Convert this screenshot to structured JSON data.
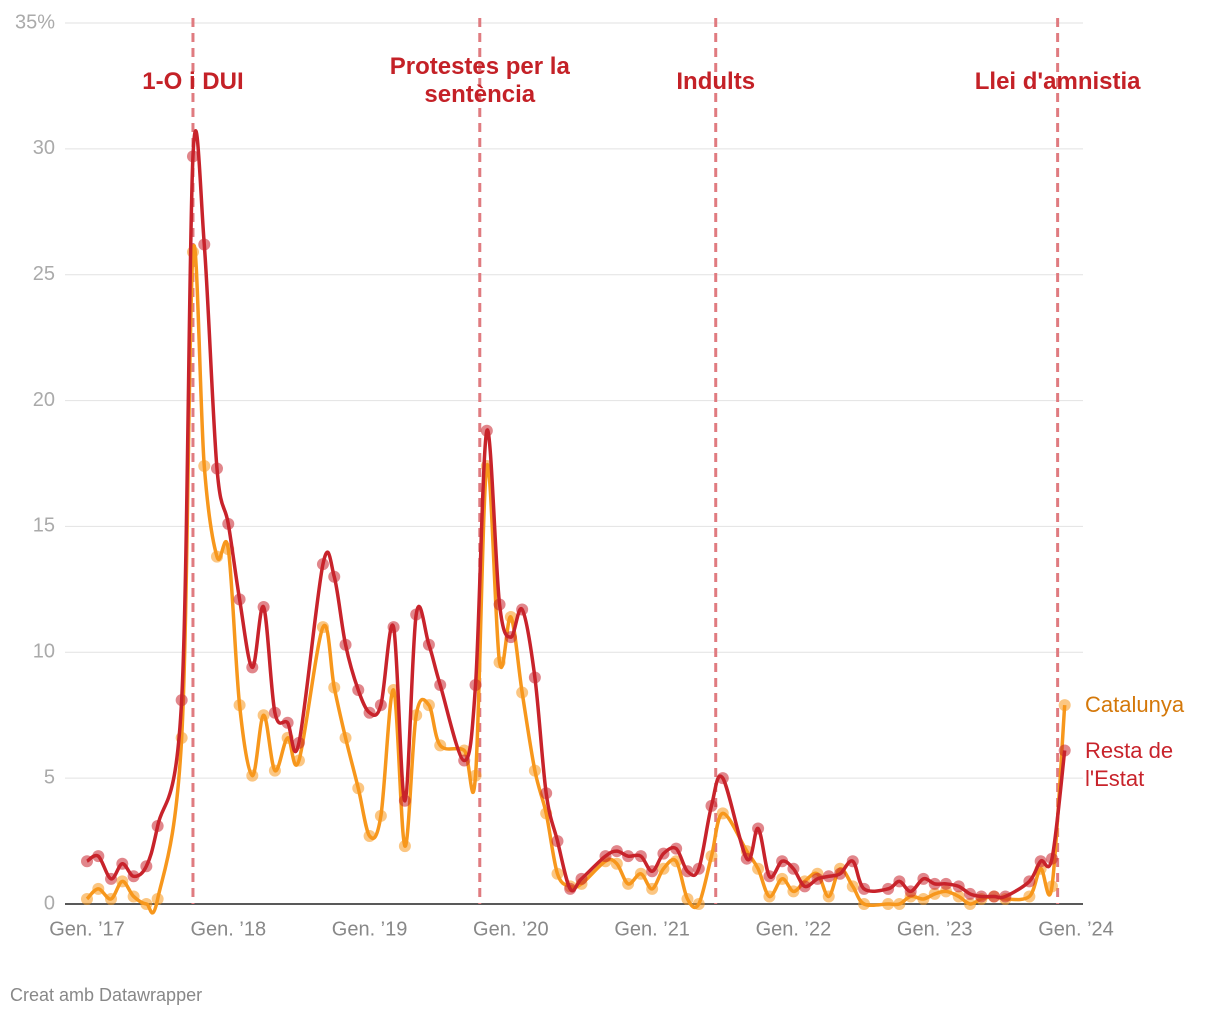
{
  "chart_data": {
    "type": "line",
    "x": [
      2017,
      2017.08,
      2017.17,
      2017.25,
      2017.33,
      2017.42,
      2017.5,
      2017.67,
      2017.75,
      2017.83,
      2017.92,
      2018,
      2018.08,
      2018.17,
      2018.25,
      2018.33,
      2018.42,
      2018.5,
      2018.67,
      2018.75,
      2018.83,
      2018.92,
      2019,
      2019.08,
      2019.17,
      2019.25,
      2019.33,
      2019.42,
      2019.5,
      2019.67,
      2019.75,
      2019.83,
      2019.92,
      2020,
      2020.08,
      2020.17,
      2020.25,
      2020.33,
      2020.42,
      2020.5,
      2020.67,
      2020.75,
      2020.83,
      2020.92,
      2021,
      2021.08,
      2021.17,
      2021.25,
      2021.33,
      2021.42,
      2021.5,
      2021.67,
      2021.75,
      2021.83,
      2021.92,
      2022,
      2022.08,
      2022.17,
      2022.25,
      2022.33,
      2022.42,
      2022.5,
      2022.67,
      2022.75,
      2022.83,
      2022.92,
      2023,
      2023.08,
      2023.17,
      2023.25,
      2023.33,
      2023.42,
      2023.5,
      2023.67,
      2023.75,
      2023.83,
      2023.92
    ],
    "series": [
      {
        "name": "Catalunya",
        "color": "#f7971c",
        "values": [
          0.2,
          0.6,
          0.2,
          0.9,
          0.3,
          0.0,
          0.2,
          6.6,
          25.9,
          17.4,
          13.8,
          14.1,
          7.9,
          5.1,
          7.5,
          5.3,
          6.6,
          5.7,
          11.0,
          8.6,
          6.6,
          4.6,
          2.7,
          3.5,
          8.5,
          2.3,
          7.5,
          7.9,
          6.3,
          6.1,
          5.1,
          17.4,
          9.6,
          11.4,
          8.4,
          5.3,
          3.6,
          1.2,
          0.7,
          0.8,
          1.7,
          1.6,
          0.8,
          1.2,
          0.6,
          1.4,
          1.7,
          0.2,
          0.0,
          1.9,
          3.6,
          2.1,
          1.4,
          0.3,
          1.0,
          0.5,
          0.9,
          1.2,
          0.3,
          1.4,
          0.7,
          0.0,
          0.0,
          0.0,
          0.3,
          0.2,
          0.4,
          0.5,
          0.3,
          0.0,
          0.2,
          0.3,
          0.2,
          0.3,
          1.4,
          0.7,
          7.9
        ]
      },
      {
        "name": "Resta de l'Estat",
        "color": "#c8232b",
        "values": [
          1.7,
          1.9,
          1.0,
          1.6,
          1.1,
          1.5,
          3.1,
          8.1,
          29.7,
          26.2,
          17.3,
          15.1,
          12.1,
          9.4,
          11.8,
          7.6,
          7.2,
          6.4,
          13.5,
          13.0,
          10.3,
          8.5,
          7.6,
          7.9,
          11.0,
          4.1,
          11.5,
          10.3,
          8.7,
          5.7,
          8.7,
          18.8,
          11.9,
          10.6,
          11.7,
          9.0,
          4.4,
          2.5,
          0.6,
          1.0,
          1.9,
          2.1,
          1.9,
          1.9,
          1.3,
          2.0,
          2.2,
          1.3,
          1.4,
          3.9,
          5.0,
          1.8,
          3.0,
          1.1,
          1.7,
          1.4,
          0.7,
          1.0,
          1.1,
          1.2,
          1.7,
          0.6,
          0.6,
          0.9,
          0.5,
          1.0,
          0.8,
          0.8,
          0.7,
          0.4,
          0.3,
          0.3,
          0.3,
          0.9,
          1.7,
          1.8,
          6.1
        ]
      }
    ],
    "xlim": [
      2017,
      2024
    ],
    "xticks": [
      {
        "value": 2017,
        "label": "Gen. ’17"
      },
      {
        "value": 2018,
        "label": "Gen. ’18"
      },
      {
        "value": 2019,
        "label": "Gen. ’19"
      },
      {
        "value": 2020,
        "label": "Gen. ’20"
      },
      {
        "value": 2021,
        "label": "Gen. ’21"
      },
      {
        "value": 2022,
        "label": "Gen. ’22"
      },
      {
        "value": 2023,
        "label": "Gen. ’23"
      },
      {
        "value": 2024,
        "label": "Gen. ’24"
      }
    ],
    "ylim": [
      0,
      35
    ],
    "yticks": [
      0,
      5,
      10,
      15,
      20,
      25,
      30,
      {
        "value": 35,
        "label": "35%"
      }
    ],
    "grid": true,
    "annotations": [
      {
        "x": 2017.75,
        "text": "1-O i DUI"
      },
      {
        "x": 2019.78,
        "text": "Protestes per la sentència"
      },
      {
        "x": 2021.45,
        "text": "Indults"
      },
      {
        "x": 2023.87,
        "text": "Llei d'amnistia"
      }
    ],
    "footer": "Creat amb Datawrapper"
  }
}
